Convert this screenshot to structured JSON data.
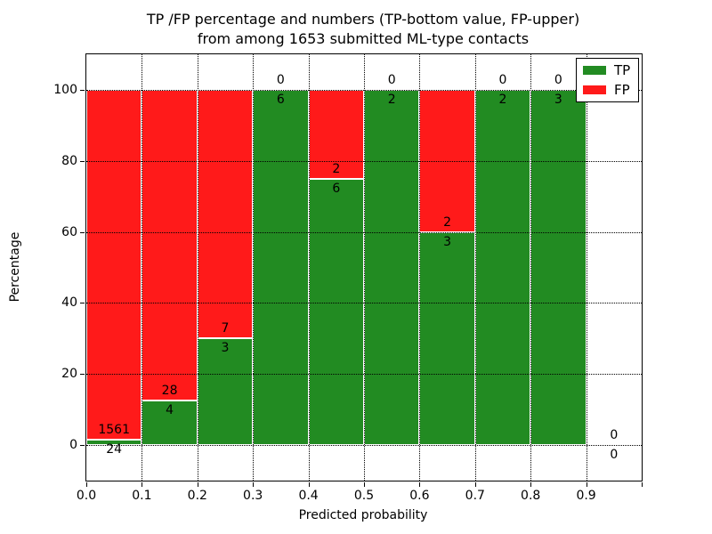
{
  "figure": {
    "title_line1": "TP /FP percentage and numbers (TP-bottom value, FP-upper)",
    "title_line2": "from among 1653 submitted ML-type contacts",
    "xlabel": "Predicted probability",
    "ylabel": "Percentage"
  },
  "legend": {
    "items": [
      {
        "label": "TP",
        "color": "#228b22"
      },
      {
        "label": "FP",
        "color": "#ff1a1a"
      }
    ]
  },
  "colors": {
    "tp_green": "#228b22",
    "fp_red": "#ff1a1a",
    "bar_edge": "#ffffff",
    "grid": "#000000",
    "background": "#ffffff",
    "text": "#000000"
  },
  "chart_data": {
    "type": "bar",
    "stacked": true,
    "title": "TP /FP percentage and numbers (TP-bottom value, FP-upper) from among 1653 submitted ML-type contacts",
    "xlabel": "Predicted probability",
    "ylabel": "Percentage",
    "total_contacts": 1653,
    "categories": [
      "0.0-0.1",
      "0.1-0.2",
      "0.2-0.3",
      "0.3-0.4",
      "0.4-0.5",
      "0.5-0.6",
      "0.6-0.7",
      "0.7-0.8",
      "0.8-0.9",
      "0.9-1.0"
    ],
    "bin_edges": [
      0.0,
      0.1,
      0.2,
      0.3,
      0.4,
      0.5,
      0.6,
      0.7,
      0.8,
      0.9,
      1.0
    ],
    "series": [
      {
        "name": "TP",
        "color": "#228b22",
        "counts": [
          24,
          4,
          3,
          6,
          6,
          2,
          3,
          2,
          3,
          0
        ],
        "percent": [
          1.51,
          12.5,
          30,
          100,
          75,
          100,
          60,
          100,
          100,
          0
        ]
      },
      {
        "name": "FP",
        "color": "#ff1a1a",
        "counts": [
          1561,
          28,
          7,
          0,
          2,
          0,
          2,
          0,
          0,
          0
        ],
        "percent": [
          98.49,
          87.5,
          70,
          0,
          25,
          0,
          40,
          0,
          0,
          0
        ]
      }
    ],
    "xticklabels": [
      "0.0",
      "0.1",
      "0.2",
      "0.3",
      "0.4",
      "0.5",
      "0.6",
      "0.7",
      "0.8",
      "0.9"
    ],
    "yticks": [
      0,
      20,
      40,
      60,
      80,
      100
    ],
    "yticklabels": [
      "0",
      "20",
      "40",
      "60",
      "80",
      "100"
    ],
    "xlim": [
      0.0,
      1.0
    ],
    "ylim": [
      -10,
      110
    ],
    "grid": "dotted",
    "legend_position": "upper right"
  }
}
